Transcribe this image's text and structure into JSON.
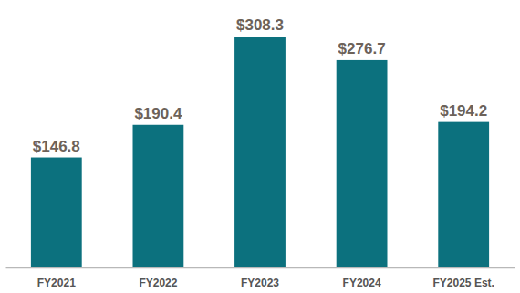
{
  "chart_data": {
    "type": "bar",
    "categories": [
      "FY2021",
      "FY2022",
      "FY2023",
      "FY2024",
      "FY2025 Est."
    ],
    "values": [
      146.8,
      190.4,
      308.3,
      276.7,
      194.2
    ],
    "value_labels": [
      "$146.8",
      "$190.4",
      "$308.3",
      "$276.7",
      "$194.2"
    ],
    "color": "#0c717e",
    "data_labels": true,
    "tick_labels": "x"
  }
}
